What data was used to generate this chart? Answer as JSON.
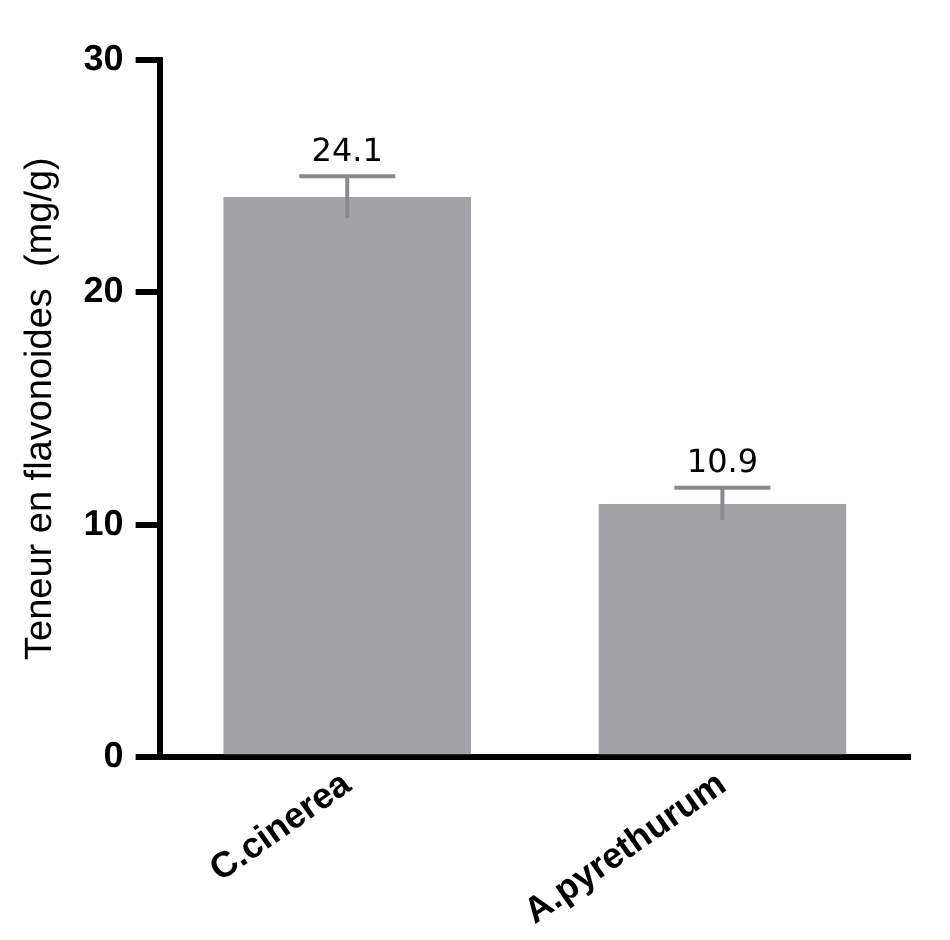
{
  "chart_data": {
    "type": "bar",
    "ylabel": "Teneur en flavonoides  (mg/g)",
    "categories": [
      "C.cinerea",
      "A.pyrethurum"
    ],
    "values": [
      24.1,
      10.9
    ],
    "color": "#a3a2a7",
    "errors": [
      0.9,
      0.7
    ],
    "ylim": [
      0,
      30
    ],
    "yticks": [
      0,
      10,
      20,
      30
    ],
    "grid": false,
    "legend": false,
    "data_labels": true
  }
}
